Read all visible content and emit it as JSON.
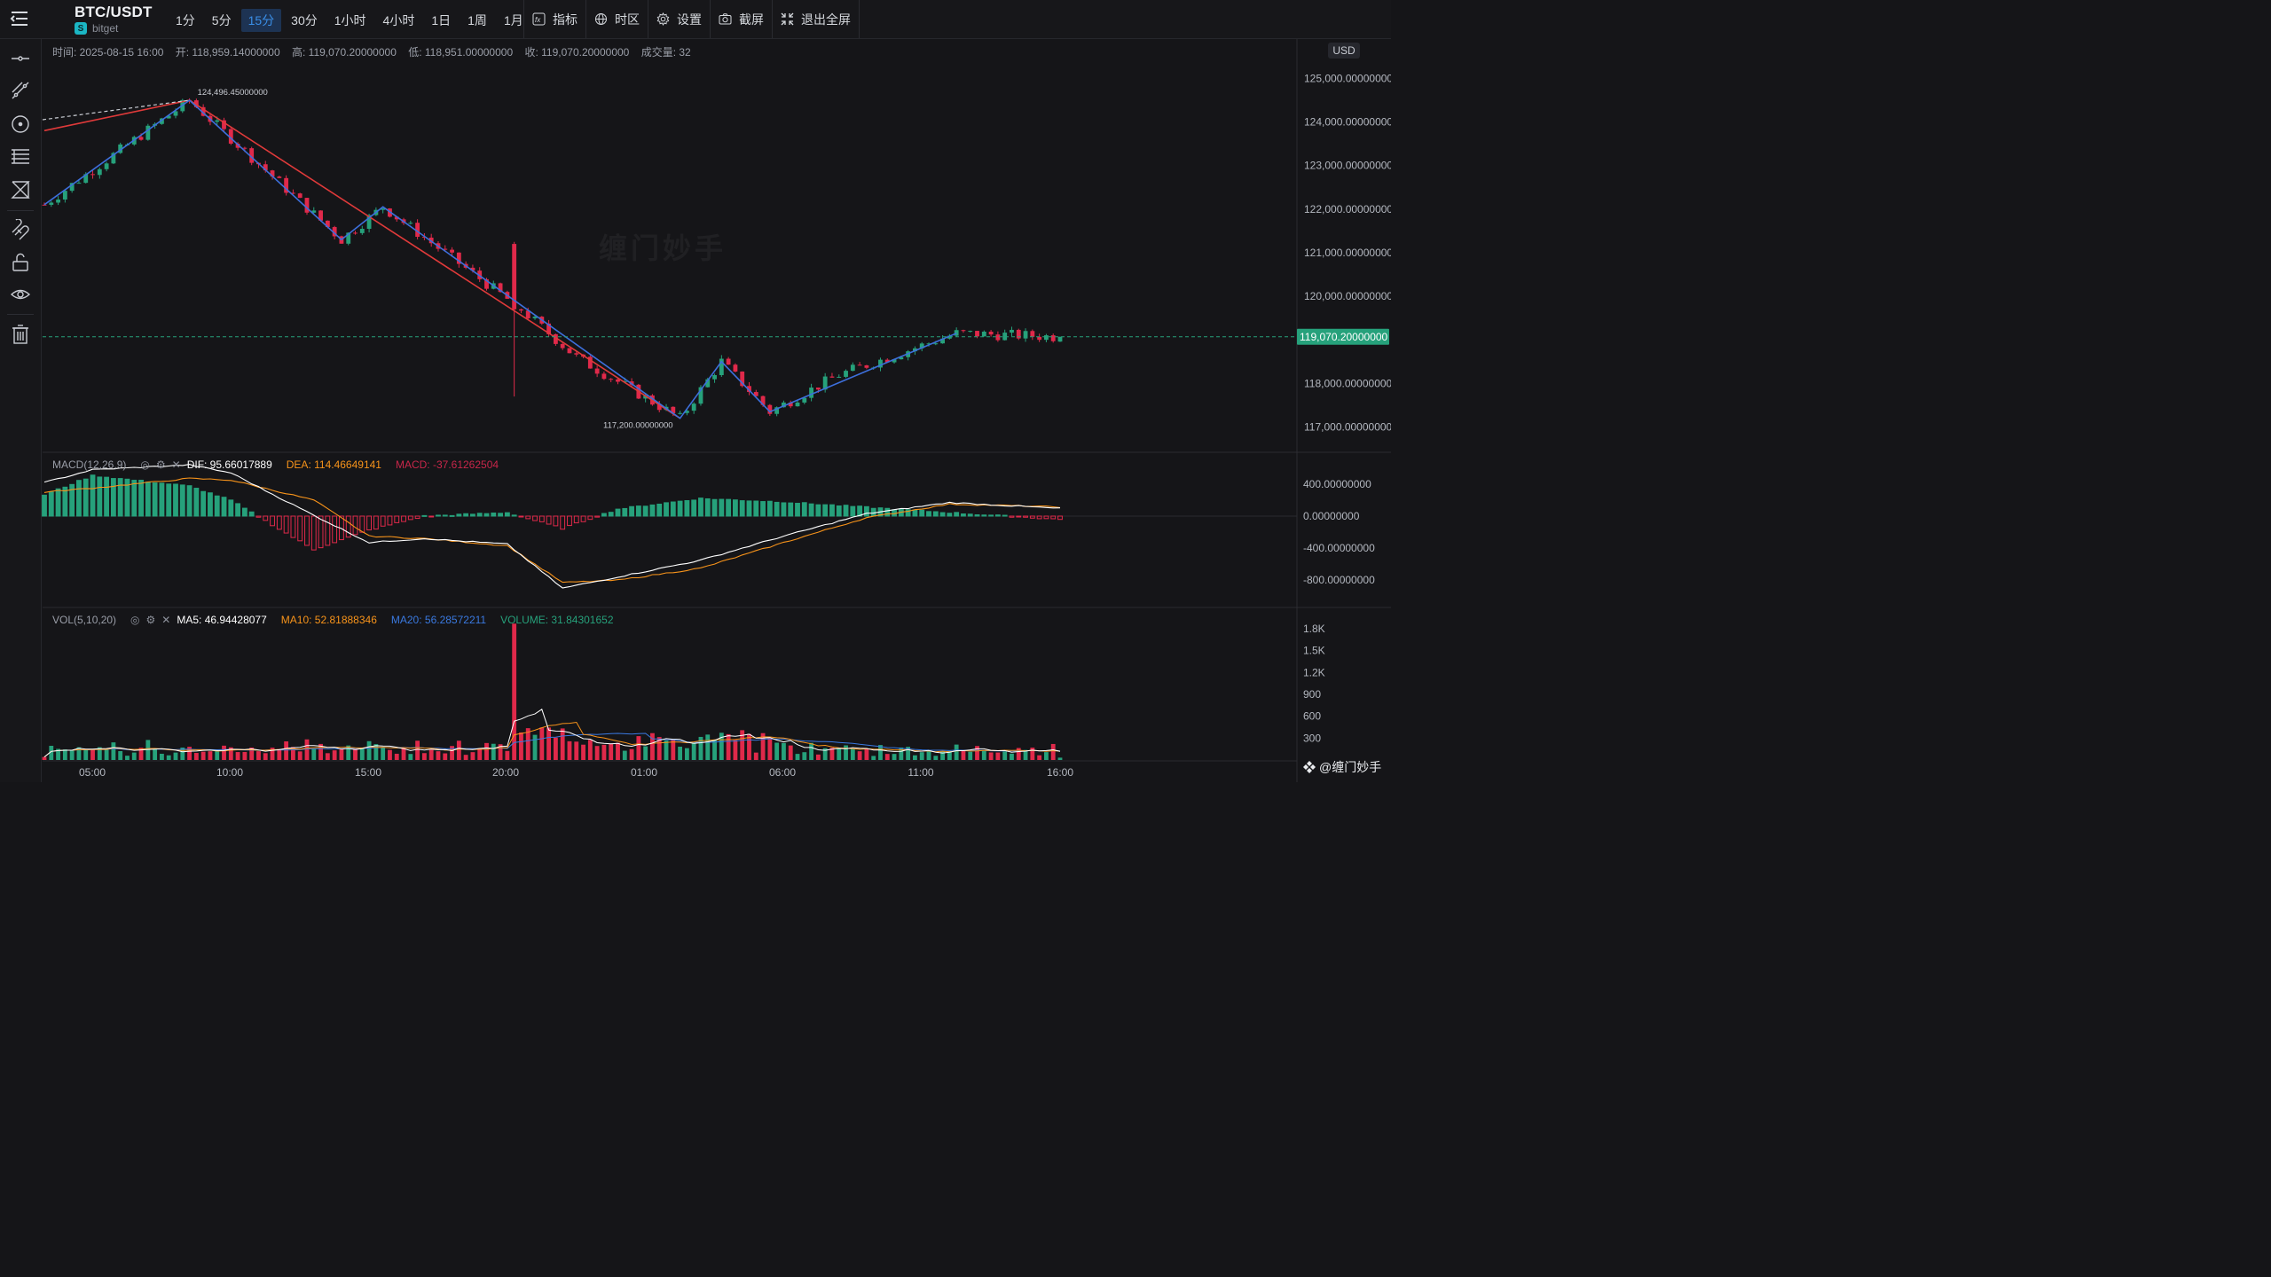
{
  "header": {
    "pair": "BTC/USDT",
    "exchange": "bitget",
    "intervals": [
      {
        "label": "1分",
        "active": false
      },
      {
        "label": "5分",
        "active": false
      },
      {
        "label": "15分",
        "active": true
      },
      {
        "label": "30分",
        "active": false
      },
      {
        "label": "1小时",
        "active": false
      },
      {
        "label": "4小时",
        "active": false
      },
      {
        "label": "1日",
        "active": false
      },
      {
        "label": "1周",
        "active": false
      },
      {
        "label": "1月",
        "active": false
      }
    ],
    "tools": [
      {
        "label": "指标",
        "icon": "fx-icon"
      },
      {
        "label": "时区",
        "icon": "globe-icon"
      },
      {
        "label": "设置",
        "icon": "gear-icon"
      },
      {
        "label": "截屏",
        "icon": "camera-icon"
      },
      {
        "label": "退出全屏",
        "icon": "exit-fullscreen-icon"
      }
    ]
  },
  "leftbar": {
    "tools": [
      "horizontal-line-icon",
      "trend-line-icon",
      "circle-tool-icon",
      "fib-lines-icon",
      "pattern-tool-icon",
      "magnet-icon",
      "unlock-icon",
      "eye-icon",
      "trash-icon"
    ]
  },
  "ohlc": {
    "time": "时间: 2025-08-15 16:00",
    "open": "开: 118,959.14000000",
    "high": "高: 119,070.20000000",
    "low": "低: 118,951.00000000",
    "close": "收: 119,070.20000000",
    "volume": "成交量: 32"
  },
  "price_axis": {
    "unit": "USD",
    "ticks": [
      "125,000.00000000",
      "124,000.00000000",
      "123,000.00000000",
      "122,000.00000000",
      "121,000.00000000",
      "120,000.00000000",
      "118,000.00000000",
      "117,000.00000000"
    ],
    "current_price": "119,070.20000000",
    "high_label": "124,496.45000000",
    "low_label": "117,200.00000000"
  },
  "macd": {
    "name": "MACD(12,26,9)",
    "dif": "DIF: 95.66017889",
    "dea": "DEA: 114.46649141",
    "macd": "MACD: -37.61262504",
    "ticks": [
      "400.00000000",
      "0.00000000",
      "-400.00000000",
      "-800.00000000"
    ]
  },
  "vol": {
    "name": "VOL(5,10,20)",
    "ma5": "MA5: 46.94428077",
    "ma10": "MA10: 52.81888346",
    "ma20": "MA20: 56.28572211",
    "volume": "VOLUME: 31.84301652",
    "ticks": [
      "1.8K",
      "1.5K",
      "1.2K",
      "900",
      "600",
      "300"
    ]
  },
  "time_axis": [
    "05:00",
    "10:00",
    "15:00",
    "20:00",
    "01:00",
    "06:00",
    "11:00",
    "16:00"
  ],
  "watermark": "@缠门妙手",
  "chart_watermark": "缠门妙手",
  "colors": {
    "up": "#26a17b",
    "down": "#e0294a",
    "current_price_bg": "#26a17b",
    "macd_dif": "#ffffff",
    "macd_dea": "#f7931a",
    "ma20": "#3a79e0",
    "zigzag_blue": "#3d6fdc",
    "zigzag_red": "#e03a3a"
  },
  "chart_data": {
    "type": "candlestick",
    "interval": "15分",
    "x_range": [
      "2025-08-14 03:15",
      "2025-08-15 16:00"
    ],
    "ylim": [
      116700,
      125400
    ],
    "price_path": [
      {
        "t": "2025-08-14 03:15",
        "p": 122100
      },
      {
        "t": "2025-08-14 05:00",
        "p": 122900
      },
      {
        "t": "2025-08-14 08:30",
        "p": 124496.45
      },
      {
        "t": "2025-08-14 14:00",
        "p": 121300
      },
      {
        "t": "2025-08-14 15:30",
        "p": 122050
      },
      {
        "t": "2025-08-14 20:30",
        "p": 119700
      },
      {
        "t": "2025-08-14 22:30",
        "p": 118600
      },
      {
        "t": "2025-08-15 02:15",
        "p": 117200
      },
      {
        "t": "2025-08-15 03:45",
        "p": 118500
      },
      {
        "t": "2025-08-15 05:30",
        "p": 117350
      },
      {
        "t": "2025-08-15 08:00",
        "p": 118200
      },
      {
        "t": "2025-08-15 12:15",
        "p": 119150
      },
      {
        "t": "2025-08-15 16:00",
        "p": 119070.2
      }
    ],
    "big_drop_candle": {
      "t": "2025-08-14 20:15",
      "open": 121200,
      "close": 119700,
      "low": 117700
    },
    "last_candle": {
      "open": 118959.14,
      "high": 119070.2,
      "low": 118951.0,
      "close": 119070.2,
      "volume": 32
    },
    "zigzag_blue": [
      {
        "t": "2025-08-14 03:15",
        "p": 122100
      },
      {
        "t": "2025-08-14 08:30",
        "p": 124496.45
      },
      {
        "t": "2025-08-14 14:00",
        "p": 121300
      },
      {
        "t": "2025-08-14 15:30",
        "p": 122050
      },
      {
        "t": "2025-08-15 02:15",
        "p": 117200
      },
      {
        "t": "2025-08-15 03:45",
        "p": 118500
      },
      {
        "t": "2025-08-15 05:30",
        "p": 117350
      },
      {
        "t": "2025-08-15 12:15",
        "p": 119150
      }
    ],
    "zigzag_red": [
      {
        "t": "2025-08-14 03:15",
        "p": 123800
      },
      {
        "t": "2025-08-14 08:30",
        "p": 124496.45
      },
      {
        "t": "2025-08-15 02:15",
        "p": 117200
      }
    ],
    "macd_series": {
      "dif": [
        {
          "t": "2025-08-14 03:15",
          "v": 420
        },
        {
          "t": "2025-08-14 05:00",
          "v": 580
        },
        {
          "t": "2025-08-14 08:30",
          "v": 640
        },
        {
          "t": "2025-08-14 10:00",
          "v": 540
        },
        {
          "t": "2025-08-14 13:00",
          "v": 10
        },
        {
          "t": "2025-08-14 15:00",
          "v": -330
        },
        {
          "t": "2025-08-14 17:00",
          "v": -280
        },
        {
          "t": "2025-08-14 20:00",
          "v": -350
        },
        {
          "t": "2025-08-14 22:00",
          "v": -900
        },
        {
          "t": "2025-08-15 00:00",
          "v": -760
        },
        {
          "t": "2025-08-15 03:00",
          "v": -550
        },
        {
          "t": "2025-08-15 06:00",
          "v": -250
        },
        {
          "t": "2025-08-15 09:00",
          "v": 30
        },
        {
          "t": "2025-08-15 12:00",
          "v": 170
        },
        {
          "t": "2025-08-15 16:00",
          "v": 95.66
        }
      ],
      "dea": [
        {
          "t": "2025-08-14 03:15",
          "v": 300
        },
        {
          "t": "2025-08-14 05:00",
          "v": 350
        },
        {
          "t": "2025-08-14 08:30",
          "v": 470
        },
        {
          "t": "2025-08-14 10:00",
          "v": 450
        },
        {
          "t": "2025-08-14 13:00",
          "v": 200
        },
        {
          "t": "2025-08-14 15:00",
          "v": -250
        },
        {
          "t": "2025-08-14 17:00",
          "v": -280
        },
        {
          "t": "2025-08-14 20:00",
          "v": -370
        },
        {
          "t": "2025-08-14 22:00",
          "v": -830
        },
        {
          "t": "2025-08-15 00:00",
          "v": -800
        },
        {
          "t": "2025-08-15 03:00",
          "v": -650
        },
        {
          "t": "2025-08-15 06:00",
          "v": -330
        },
        {
          "t": "2025-08-15 09:00",
          "v": -20
        },
        {
          "t": "2025-08-15 12:00",
          "v": 150
        },
        {
          "t": "2025-08-15 16:00",
          "v": 114.47
        }
      ],
      "ylim": [
        -960,
        520
      ]
    },
    "volume_ylim": [
      0,
      2000
    ],
    "big_volume_bar": {
      "t": "2025-08-14 20:15",
      "v": 1870
    }
  }
}
